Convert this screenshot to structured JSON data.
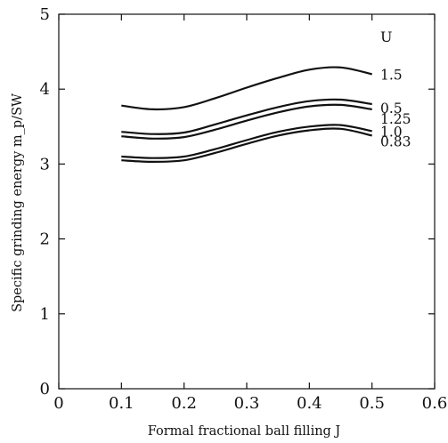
{
  "chart_data": {
    "type": "line",
    "xlabel": "Formal fractional ball filling J",
    "ylabel": "Specific grinding energy m_p/SW",
    "xlim": [
      0,
      0.6
    ],
    "ylim": [
      0,
      5
    ],
    "xticks": [
      "0",
      "0.1",
      "0.2",
      "0.3",
      "0.4",
      "0.5",
      "0.6"
    ],
    "yticks": [
      "0",
      "1",
      "2",
      "3",
      "4",
      "5"
    ],
    "grid": false,
    "legend_title": "U",
    "series": [
      {
        "name": "1.5",
        "x": [
          0.1,
          0.15,
          0.2,
          0.25,
          0.3,
          0.35,
          0.4,
          0.45,
          0.5
        ],
        "values": [
          3.78,
          3.73,
          3.76,
          3.88,
          4.02,
          4.15,
          4.26,
          4.29,
          4.2
        ]
      },
      {
        "name": "0.5",
        "x": [
          0.1,
          0.15,
          0.2,
          0.25,
          0.3,
          0.35,
          0.4,
          0.45,
          0.5
        ],
        "values": [
          3.43,
          3.4,
          3.42,
          3.53,
          3.65,
          3.76,
          3.84,
          3.86,
          3.8
        ]
      },
      {
        "name": "1.25",
        "x": [
          0.1,
          0.15,
          0.2,
          0.25,
          0.3,
          0.35,
          0.4,
          0.45,
          0.5
        ],
        "values": [
          3.37,
          3.34,
          3.36,
          3.46,
          3.58,
          3.69,
          3.77,
          3.79,
          3.73
        ]
      },
      {
        "name": "1.0",
        "x": [
          0.1,
          0.15,
          0.2,
          0.25,
          0.3,
          0.35,
          0.4,
          0.45,
          0.5
        ],
        "values": [
          3.1,
          3.08,
          3.1,
          3.2,
          3.32,
          3.43,
          3.5,
          3.52,
          3.44
        ]
      },
      {
        "name": "0.83",
        "x": [
          0.1,
          0.15,
          0.2,
          0.25,
          0.3,
          0.35,
          0.4,
          0.45,
          0.5
        ],
        "values": [
          3.05,
          3.03,
          3.05,
          3.15,
          3.27,
          3.38,
          3.45,
          3.47,
          3.38
        ]
      }
    ]
  }
}
